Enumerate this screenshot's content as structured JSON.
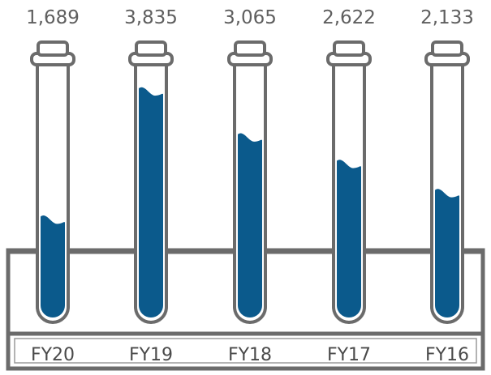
{
  "chart_data": {
    "type": "bar",
    "title": "",
    "xlabel": "",
    "ylabel": "",
    "categories": [
      "FY20",
      "FY19",
      "FY18",
      "FY17",
      "FY16"
    ],
    "values": [
      1689,
      3835,
      3065,
      2622,
      2133
    ],
    "value_labels": [
      "1,689",
      "3,835",
      "3,065",
      "2,622",
      "2,133"
    ],
    "ylim": [
      0,
      4500
    ],
    "colors": {
      "fill": "#0b5a8c",
      "outline": "#6b6b6b",
      "text": "#5f5f5f"
    }
  }
}
